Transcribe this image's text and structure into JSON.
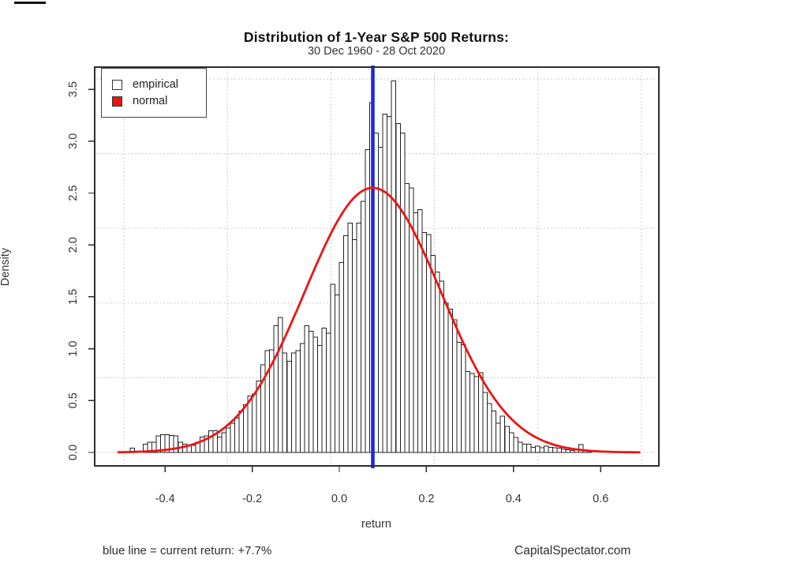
{
  "chart_data": {
    "type": "histogram",
    "title": "Distribution of 1-Year S&P 500 Returns:",
    "subtitle": "30 Dec 1960 - 28 Oct 2020",
    "xlabel": "return",
    "ylabel": "Density",
    "x_ticks": {
      "values": [
        -0.4,
        -0.2,
        0.0,
        0.2,
        0.4,
        0.6
      ],
      "labels": [
        "-0.4",
        "-0.2",
        "0.0",
        "0.2",
        "0.4",
        "0.6"
      ]
    },
    "y_ticks": {
      "values": [
        0,
        0.5,
        1.0,
        1.5,
        2.0,
        2.5,
        3.0,
        3.5
      ],
      "labels": [
        "0.0",
        "0.5",
        "1.0",
        "1.5",
        "2.0",
        "2.5",
        "3.0",
        "3.5"
      ]
    },
    "xlim": [
      -0.56,
      0.73
    ],
    "ylim": [
      -0.13,
      3.71
    ],
    "grid": true,
    "legend": {
      "position": "top-left",
      "items": [
        {
          "label": "empirical",
          "swatch": "#ffffff"
        },
        {
          "label": "normal",
          "swatch": "#ed1111"
        }
      ]
    },
    "histogram": {
      "bin_start": -0.48,
      "bin_width": 0.01,
      "densities": [
        0.04,
        0,
        0,
        0.08,
        0.1,
        0.1,
        0.16,
        0.17,
        0.17,
        0.165,
        0.16,
        0.1,
        0.08,
        0.07,
        0.07,
        0.1,
        0.15,
        0.16,
        0.21,
        0.21,
        0.15,
        0.19,
        0.235,
        0.28,
        0.33,
        0.4,
        0.46,
        0.545,
        0.565,
        0.69,
        0.845,
        0.98,
        0.99,
        1.22,
        1.3,
        0.96,
        0.88,
        0.96,
        0.98,
        1.05,
        1.22,
        1.17,
        1.11,
        1.03,
        1.2,
        1.15,
        1.62,
        1.52,
        1.83,
        2.09,
        2.21,
        2.05,
        2.21,
        2.42,
        2.92,
        3.37,
        3.08,
        2.94,
        3.26,
        3.24,
        3.58,
        3.17,
        3.08,
        2.59,
        2.55,
        2.31,
        2.34,
        2.12,
        2.1,
        1.9,
        1.74,
        1.65,
        1.44,
        1.38,
        1.28,
        1.06,
        1.04,
        0.78,
        0.76,
        0.73,
        0.77,
        0.58,
        0.47,
        0.4,
        0.28,
        0.35,
        0.25,
        0.19,
        0.145,
        0.1,
        0.08,
        0.08,
        0.05,
        0.06,
        0.045,
        0.06,
        0.05,
        0.045,
        0.04,
        0.03,
        0.025,
        0.02,
        0.03,
        0.078,
        0.02,
        0.015
      ]
    },
    "normal_curve": {
      "mean": 0.077,
      "sd": 0.1565,
      "peak_density": 2.55,
      "x_from": -0.507,
      "x_to": 0.69
    },
    "current_return_line": {
      "x": 0.077,
      "label": "+7.7%"
    }
  },
  "annotations": {
    "footer_left": "blue line = current return: +7.7%",
    "footer_right": "CapitalSpectator.com"
  },
  "colors": {
    "bar_fill": "#ffffff",
    "bar_stroke": "#222222",
    "normal_curve": "#ed1414",
    "current_line": "#2424d6",
    "grid": "#c6c6c6",
    "frame": "#2e2e2e",
    "tick": "#2b2b2b",
    "text": "#333333"
  }
}
